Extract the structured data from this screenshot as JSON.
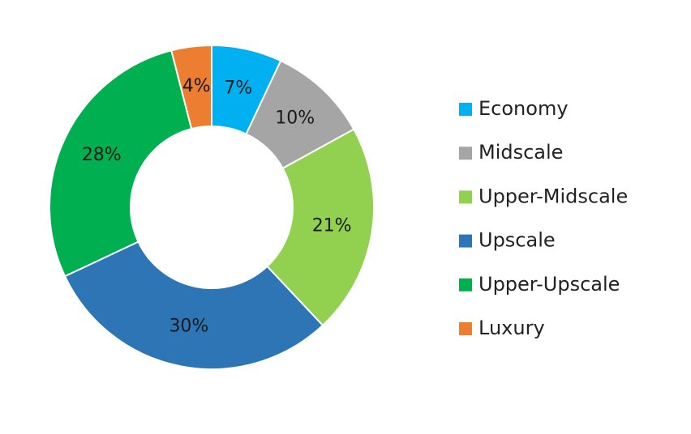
{
  "chart_data": {
    "type": "donut",
    "categories": [
      "Economy",
      "Midscale",
      "Upper-Midscale",
      "Upscale",
      "Upper-Upscale",
      "Luxury"
    ],
    "values": [
      7,
      10,
      21,
      30,
      28,
      4
    ],
    "value_labels": [
      "7%",
      "10%",
      "21%",
      "30%",
      "28%",
      "4%"
    ],
    "colors": [
      "#00b0f0",
      "#a5a5a5",
      "#92d050",
      "#2e75b6",
      "#00b050",
      "#ed7d31"
    ],
    "legend": "right"
  }
}
